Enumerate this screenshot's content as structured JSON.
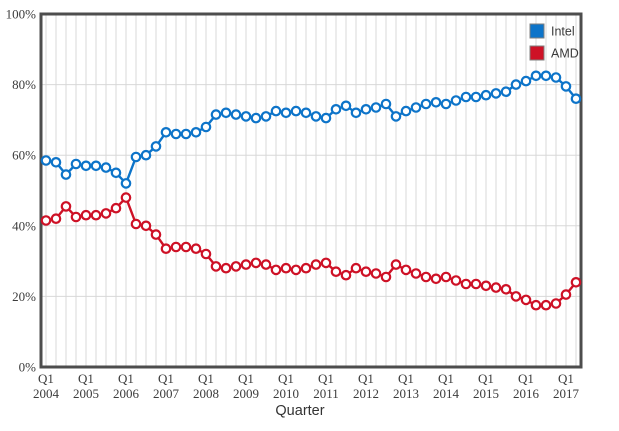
{
  "colors": {
    "intel_blue": "#0d74c9",
    "amd_red": "#ce1126",
    "grid": "#d8d8d8",
    "frame": "#4d4d4d",
    "tick_text": "#3c3c3c",
    "legend_swatch_border": "#7f7f7f",
    "marker_fill": "#ffffff",
    "background": "#ffffff"
  },
  "chart_data": {
    "type": "line",
    "title": "",
    "xlabel": "Quarter",
    "ylabel": "",
    "ylim": [
      0,
      100
    ],
    "grid": true,
    "legend_position": "top-right",
    "ytick_values": [
      0,
      20,
      40,
      60,
      80,
      100
    ],
    "ytick_labels": [
      "0%",
      "20%",
      "40%",
      "60%",
      "80%",
      "100%"
    ],
    "x_major_labels": [
      {
        "quarter": "Q1",
        "year": "2004"
      },
      {
        "quarter": "Q1",
        "year": "2005"
      },
      {
        "quarter": "Q1",
        "year": "2006"
      },
      {
        "quarter": "Q1",
        "year": "2007"
      },
      {
        "quarter": "Q1",
        "year": "2008"
      },
      {
        "quarter": "Q1",
        "year": "2009"
      },
      {
        "quarter": "Q1",
        "year": "2010"
      },
      {
        "quarter": "Q1",
        "year": "2011"
      },
      {
        "quarter": "Q1",
        "year": "2012"
      },
      {
        "quarter": "Q1",
        "year": "2013"
      },
      {
        "quarter": "Q1",
        "year": "2014"
      },
      {
        "quarter": "Q1",
        "year": "2015"
      },
      {
        "quarter": "Q1",
        "year": "2016"
      },
      {
        "quarter": "Q1",
        "year": "2017"
      }
    ],
    "categories": [
      "Q1 2004",
      "Q2 2004",
      "Q3 2004",
      "Q4 2004",
      "Q1 2005",
      "Q2 2005",
      "Q3 2005",
      "Q4 2005",
      "Q1 2006",
      "Q2 2006",
      "Q3 2006",
      "Q4 2006",
      "Q1 2007",
      "Q2 2007",
      "Q3 2007",
      "Q4 2007",
      "Q1 2008",
      "Q2 2008",
      "Q3 2008",
      "Q4 2008",
      "Q1 2009",
      "Q2 2009",
      "Q3 2009",
      "Q4 2009",
      "Q1 2010",
      "Q2 2010",
      "Q3 2010",
      "Q4 2010",
      "Q1 2011",
      "Q2 2011",
      "Q3 2011",
      "Q4 2011",
      "Q1 2012",
      "Q2 2012",
      "Q3 2012",
      "Q4 2012",
      "Q1 2013",
      "Q2 2013",
      "Q3 2013",
      "Q4 2013",
      "Q1 2014",
      "Q2 2014",
      "Q3 2014",
      "Q4 2014",
      "Q1 2015",
      "Q2 2015",
      "Q3 2015",
      "Q4 2015",
      "Q1 2016",
      "Q2 2016",
      "Q3 2016",
      "Q4 2016",
      "Q1 2017",
      "Q2 2017"
    ],
    "series": [
      {
        "name": "Intel",
        "color": "#0d74c9",
        "values": [
          58.5,
          58,
          54.5,
          57.5,
          57,
          57,
          56.5,
          55,
          52,
          59.5,
          60,
          62.5,
          66.5,
          66,
          66,
          66.5,
          68,
          71.5,
          72,
          71.5,
          71,
          70.5,
          71,
          72.5,
          72,
          72.5,
          72,
          71,
          70.5,
          73,
          74,
          72,
          73,
          73.5,
          74.5,
          71,
          72.5,
          73.5,
          74.5,
          75,
          74.5,
          75.5,
          76.5,
          76.5,
          77,
          77.5,
          78,
          80,
          81,
          82.5,
          82.5,
          82,
          79.5,
          76
        ]
      },
      {
        "name": "AMD",
        "color": "#ce1126",
        "values": [
          41.5,
          42,
          45.5,
          42.5,
          43,
          43,
          43.5,
          45,
          48,
          40.5,
          40,
          37.5,
          33.5,
          34,
          34,
          33.5,
          32,
          28.5,
          28,
          28.5,
          29,
          29.5,
          29,
          27.5,
          28,
          27.5,
          28,
          29,
          29.5,
          27,
          26,
          28,
          27,
          26.5,
          25.5,
          29,
          27.5,
          26.5,
          25.5,
          25,
          25.5,
          24.5,
          23.5,
          23.5,
          23,
          22.5,
          22,
          20,
          19,
          17.5,
          17.5,
          18,
          20.5,
          24
        ]
      }
    ],
    "legend": {
      "entries": [
        {
          "label": "Intel",
          "color": "#0d74c9"
        },
        {
          "label": "AMD",
          "color": "#ce1126"
        }
      ]
    }
  }
}
